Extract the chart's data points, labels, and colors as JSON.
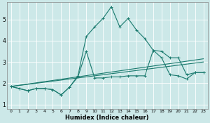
{
  "xlabel": "Humidex (Indice chaleur)",
  "xlim": [
    -0.5,
    23.5
  ],
  "ylim": [
    0.8,
    5.8
  ],
  "yticks": [
    1,
    2,
    3,
    4,
    5
  ],
  "xticks": [
    0,
    1,
    2,
    3,
    4,
    5,
    6,
    7,
    8,
    9,
    10,
    11,
    12,
    13,
    14,
    15,
    16,
    17,
    18,
    19,
    20,
    21,
    22,
    23
  ],
  "bg_color": "#cce8e8",
  "grid_color": "#ffffff",
  "line_color": "#1a7a6e",
  "series": {
    "line_trend1_x": [
      0,
      23
    ],
    "line_trend1_y": [
      1.85,
      3.0
    ],
    "line_trend2_x": [
      0,
      23
    ],
    "line_trend2_y": [
      1.85,
      3.15
    ],
    "line_jagged_x": [
      0,
      1,
      2,
      3,
      4,
      5,
      6,
      7,
      8,
      9,
      10,
      11,
      12,
      13,
      14,
      15,
      16,
      17,
      18,
      19,
      20,
      21,
      22,
      23
    ],
    "line_jagged_y": [
      1.85,
      1.75,
      1.65,
      1.75,
      1.75,
      1.7,
      1.45,
      1.82,
      2.3,
      3.5,
      2.25,
      2.25,
      2.3,
      2.3,
      2.35,
      2.35,
      2.35,
      3.55,
      3.2,
      2.4,
      2.35,
      2.2,
      2.5,
      2.5
    ],
    "line_peaked_x": [
      0,
      1,
      2,
      3,
      4,
      5,
      6,
      7,
      8,
      9,
      10,
      11,
      12,
      13,
      14,
      15,
      16,
      17,
      18,
      19,
      20,
      21,
      22,
      23
    ],
    "line_peaked_y": [
      1.85,
      1.75,
      1.65,
      1.75,
      1.75,
      1.7,
      1.45,
      1.82,
      2.35,
      4.2,
      4.65,
      5.05,
      5.6,
      4.65,
      5.05,
      4.5,
      4.1,
      3.55,
      3.5,
      3.2,
      3.2,
      2.4,
      2.5,
      2.5
    ]
  }
}
